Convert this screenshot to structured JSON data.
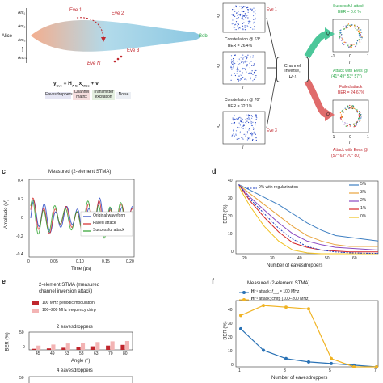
{
  "panel_a": {
    "ants": [
      "Ant₁",
      "Ant₂",
      "Ant₃",
      "Antₘ"
    ],
    "alice": "Alice",
    "bob": "Bob",
    "eves": [
      "Eve 1",
      "Eve 2",
      "Eve 3",
      "Eve N"
    ],
    "equation": "y_Eve = H_a-E x_Alice + v",
    "eq_y": "y",
    "eq_y_sub": "Eve",
    "eq_eq": "=",
    "eq_H": "H",
    "eq_H_sub": "A-E",
    "eq_x": "x",
    "eq_x_sub": "Alice",
    "eq_plus": "+",
    "eq_v": "v",
    "legend": [
      "Eavesdroppers",
      "Channel matrix",
      "Transmitter excitation",
      "Noise"
    ]
  },
  "panel_b": {
    "const1_eve": "Eve 1",
    "const2_title": "Constellation @ 63°",
    "const2_ber": "BER = 26.4%",
    "const3_title": "Constellation @ 70°",
    "const3_ber": "BER = 32.1%",
    "const3_eve": "Eve 3",
    "axis_q": "Q",
    "axis_i": "I",
    "channel_box": "Channel inverse,",
    "channel_h": "H⁻¹",
    "success_title": "Successful attack",
    "success_ber": "BER = 0.6 %",
    "success_eves_label": "Attack with Eves @",
    "success_eves_angles": "(41°  49°  53°  57°)",
    "failed_title": "Failed attack",
    "failed_ber": "BER = 24.67%",
    "failed_eves_label": "Attack with Eves @",
    "failed_eves_angles": "(57°  63°  70°  80)",
    "ticks_small": [
      "-1",
      "0",
      "1"
    ]
  },
  "panel_c": {
    "letter": "c",
    "title": "Measured (2-element STMA)",
    "ylabel": "Amplitude (V)",
    "xlabel": "Time (μs)",
    "yticks": [
      "0.4",
      "0.2",
      "0",
      "-0.2",
      "-0.4"
    ],
    "xticks": [
      "0",
      "0.05",
      "0.10",
      "0.15",
      "0.20"
    ],
    "legend": [
      "Original waveform",
      "Failed attack",
      "Successful attack"
    ],
    "colors": {
      "original": "#1f3fbf",
      "failed": "#d62728",
      "success": "#2ca02c"
    }
  },
  "panel_d": {
    "letter": "d",
    "ylabel": "BER (%)",
    "xlabel": "Number of eavesdroppers",
    "yticks": [
      "40",
      "30",
      "20",
      "10",
      "0"
    ],
    "xticks": [
      "20",
      "30",
      "40",
      "50",
      "60"
    ],
    "legend_dashed": "0% with regularization",
    "legend_levels": [
      "5%",
      "3%",
      "2%",
      "1%",
      "0%"
    ],
    "level_colors": [
      "#3e7fc2",
      "#e8a33d",
      "#8a4ac0",
      "#d62728",
      "#f0c020"
    ]
  },
  "panel_e": {
    "letter": "e",
    "title_line1": "2-element STMA (measured",
    "title_line2": "channel inversion attack)",
    "legend": [
      "100 MHz periodic modulation",
      "100–200 MHz frequency chirp"
    ],
    "sub_title": "2 eavesdroppers",
    "ylabel": "BER (%)",
    "yticks": [
      "50",
      "0"
    ],
    "xlabel": "Angle (°)",
    "xticks": [
      "45",
      "49",
      "53",
      "58",
      "63",
      "70",
      "80"
    ],
    "sub_title2": "4 eavesdroppers",
    "ytick_bottom": "50"
  },
  "panel_f": {
    "letter": "f",
    "title": "Measured (2-element STMA)",
    "legend1_a": "H",
    "legend1_b": "⁻¹ attack; ",
    "legend1_c": "f",
    "legend1_d": "mod",
    "legend1_e": " = 100 MHz",
    "legend2_a": "H",
    "legend2_b": "⁻¹ attack; chirp (100–200 MHz)",
    "ylabel": "BER (%)",
    "yticks": [
      "40",
      "30",
      "20",
      "10",
      "0"
    ],
    "xlabel": "Number of eavesdroppers",
    "xticks": [
      "1",
      "3",
      "5",
      "7"
    ],
    "colors": {
      "periodic": "#2a72b5",
      "chirp": "#f0b323"
    }
  },
  "chart_data": [
    {
      "type": "line",
      "xlabel": "Number of eavesdroppers",
      "ylabel": "BER (%)",
      "xlim": [
        15,
        65
      ],
      "ylim": [
        0,
        40
      ],
      "x": [
        16,
        20,
        25,
        30,
        35,
        40,
        45,
        50,
        55,
        60,
        65
      ],
      "series": [
        {
          "name": "5%",
          "values": [
            38,
            35,
            31,
            27,
            22,
            17,
            13,
            10,
            9,
            8,
            7
          ]
        },
        {
          "name": "3%",
          "values": [
            38,
            33,
            27,
            21,
            15,
            10,
            7,
            5,
            4,
            4,
            4
          ]
        },
        {
          "name": "2%",
          "values": [
            38,
            31,
            24,
            17,
            11,
            7,
            5,
            3.5,
            3,
            2.5,
            2
          ]
        },
        {
          "name": "1%",
          "values": [
            38,
            29,
            20,
            12,
            6,
            3.5,
            2,
            1.5,
            1,
            1,
            1
          ]
        },
        {
          "name": "0%",
          "values": [
            37,
            26,
            15,
            7,
            2,
            0.5,
            0,
            0,
            0,
            0,
            0
          ]
        },
        {
          "name": "0% with regularization",
          "values": [
            38,
            30,
            22,
            14,
            8,
            4,
            2,
            1,
            0.5,
            0.3,
            0.2
          ]
        }
      ]
    },
    {
      "type": "bar",
      "xlabel": "Angle (°)",
      "ylabel": "BER (%)",
      "ylim": [
        0,
        50
      ],
      "categories": [
        "45",
        "49",
        "53",
        "58",
        "63",
        "70",
        "80"
      ],
      "series": [
        {
          "name": "100 MHz periodic modulation",
          "values": [
            3,
            4,
            6,
            8,
            10,
            12,
            14
          ]
        },
        {
          "name": "100–200 MHz frequency chirp",
          "values": [
            12,
            15,
            18,
            20,
            22,
            24,
            25
          ]
        }
      ]
    },
    {
      "type": "line",
      "xlabel": "Number of eavesdroppers",
      "ylabel": "BER (%)",
      "xlim": [
        1,
        7
      ],
      "ylim": [
        0,
        40
      ],
      "x": [
        1,
        2,
        3,
        4,
        5,
        6,
        7
      ],
      "series": [
        {
          "name": "H⁻¹ attack; f_mod = 100 MHz",
          "values": [
            23,
            10,
            5,
            3,
            2,
            1,
            0
          ]
        },
        {
          "name": "H⁻¹ attack; chirp (100–200 MHz)",
          "values": [
            31,
            37,
            36,
            35,
            5,
            0,
            0
          ]
        }
      ]
    }
  ]
}
